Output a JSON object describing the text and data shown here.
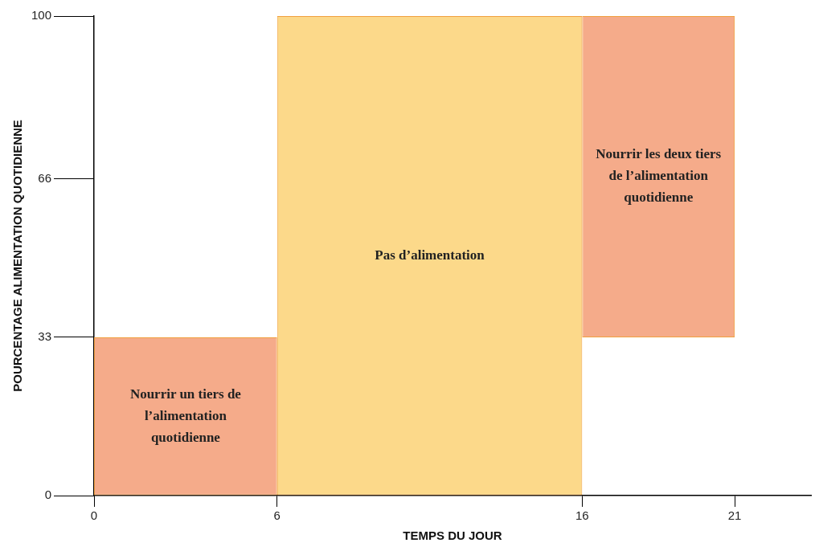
{
  "chart_data": {
    "type": "histogram",
    "bins": [
      0,
      6,
      16,
      21
    ],
    "values": [
      33,
      100,
      67
    ],
    "base": [
      0,
      0,
      33
    ],
    "colors": [
      "#f5ab8a",
      "#fcd98a",
      "#f5ab8a"
    ],
    "xlim": [
      0,
      23.5
    ],
    "xticks": [
      0,
      6,
      16,
      21
    ],
    "ylim": [
      0,
      100
    ],
    "yticks": [
      0,
      33,
      66,
      100
    ],
    "xlabel": "TEMPS DU JOUR",
    "ylabel": "POURCENTAGE ALIMENTATION QUOTIDIENNE",
    "grid": false,
    "legend": false,
    "annotations": [
      "Nourrir un tiers de l’alimentation quotidienne",
      "Pas d’alimentation",
      "Nourrir les deux tiers de l’alimentation quotidienne"
    ]
  }
}
